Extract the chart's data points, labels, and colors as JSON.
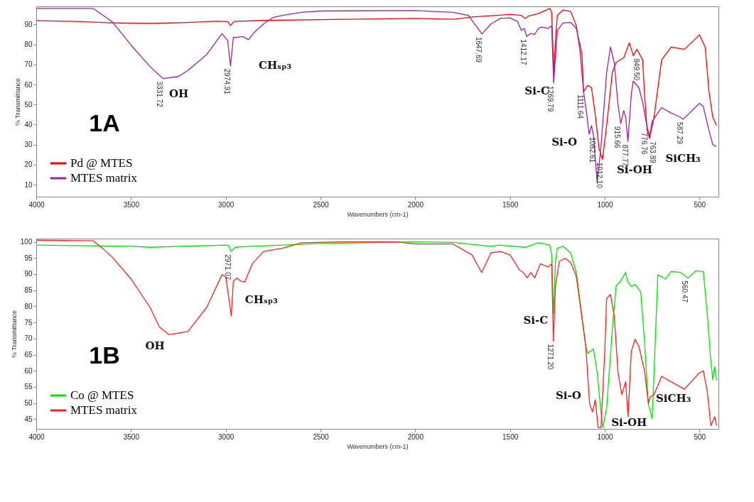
{
  "chart_data": [
    {
      "type": "line",
      "title": "1A",
      "xlabel": "Wavenumbers (cm-1)",
      "ylabel": "% Transmittance",
      "xlim": [
        4000,
        400
      ],
      "ylim": [
        4,
        99
      ],
      "xticks": [
        4000,
        3500,
        3000,
        2500,
        2000,
        1500,
        1000,
        500
      ],
      "yticks": [
        10,
        20,
        30,
        40,
        50,
        60,
        70,
        80,
        90
      ],
      "legend": "bottom left",
      "series": [
        {
          "name": "Pd @ MTES",
          "color": "#ff0000",
          "x": [
            4000,
            3800,
            3600,
            3400,
            3200,
            3050,
            2990,
            2975,
            2955,
            2800,
            2500,
            2000,
            1800,
            1700,
            1500,
            1440,
            1420,
            1400,
            1350,
            1290,
            1280,
            1269,
            1258,
            1250,
            1220,
            1180,
            1150,
            1130,
            1112,
            1090,
            1070,
            1050,
            1030,
            1012.1,
            990,
            960,
            940,
            900,
            870,
            849.5,
            830,
            800,
            790,
            776.76,
            763.89,
            740,
            700,
            650,
            580,
            520,
            500,
            470,
            450,
            430,
            410
          ],
          "values": [
            91.9,
            91.5,
            90.8,
            90.5,
            91,
            91.6,
            91.4,
            89.5,
            91.5,
            92,
            92.4,
            93,
            92.6,
            93.7,
            95,
            94.5,
            93,
            94.3,
            95.4,
            98,
            96,
            66,
            85,
            94.6,
            97.2,
            96.5,
            89.3,
            76.5,
            56.4,
            59.6,
            58.5,
            44.8,
            28,
            22.5,
            39.5,
            66,
            71,
            73.4,
            80.8,
            74.4,
            77.6,
            72.3,
            55,
            37.4,
            33,
            43.7,
            72.3,
            78.7,
            77.6,
            83,
            84.8,
            78.7,
            56.4,
            43.7,
            39.5
          ]
        },
        {
          "name": "MTES matrix",
          "color": "#a0229e",
          "x": [
            4000,
            3700,
            3600,
            3500,
            3400,
            3331.72,
            3250,
            3200,
            3100,
            3020,
            2990,
            2974.91,
            2960,
            2940,
            2910,
            2880,
            2850,
            2800,
            2750,
            2700,
            2600,
            2500,
            2000,
            1800,
            1720,
            1680,
            1647.69,
            1600,
            1550,
            1500,
            1460,
            1440,
            1425,
            1412.17,
            1390,
            1370,
            1350,
            1330,
            1300,
            1280,
            1269.79,
            1250,
            1220,
            1180,
            1150,
            1120,
            1111.64,
            1095,
            1082.61,
            1070,
            1060,
            1040,
            1020,
            990,
            970,
            950,
            930,
            915.66,
            900,
            890,
            877.77,
            860,
            850,
            820,
            800,
            780,
            764,
            750,
            700,
            650,
            600,
            587.29,
            500,
            480,
            450,
            430,
            410
          ],
          "values": [
            98,
            98,
            91.4,
            79.7,
            69,
            63,
            64,
            67,
            75,
            85.4,
            82,
            69.3,
            83.4,
            83.6,
            84,
            82.4,
            86,
            90.3,
            93.5,
            94.5,
            96,
            96.7,
            96.9,
            96,
            94.5,
            89.3,
            85.2,
            90.3,
            93,
            93.3,
            91.4,
            87,
            88,
            84,
            85.5,
            85,
            88,
            88.7,
            88,
            89.3,
            60.7,
            87,
            90.8,
            91,
            88,
            75.5,
            56.4,
            45,
            35.2,
            39.5,
            35,
            10.9,
            29,
            66,
            78.7,
            71,
            50,
            40.5,
            46.9,
            44,
            31.5,
            55,
            61.7,
            58.5,
            51,
            40.5,
            34,
            41.6,
            48.5,
            45.8,
            43.7,
            42.6,
            50.6,
            49,
            37,
            30,
            29
          ]
        }
      ],
      "annotations": [
        "OH",
        "CHₛₚ₃",
        "Si-C",
        "Si-O",
        "Si-OH",
        "SiCH₃",
        {
          "text": "3331.72",
          "x": 3331.72,
          "y": 63
        },
        {
          "text": "2974.91",
          "x": 2974.91,
          "y": 69.3
        },
        {
          "text": "1647.69",
          "x": 1647.69,
          "y": 85.2
        },
        {
          "text": "1412.17",
          "x": 1412.17,
          "y": 84
        },
        {
          "text": "1269.79",
          "x": 1269.79,
          "y": 60.7
        },
        {
          "text": "1111.64",
          "x": 1111.64,
          "y": 56.4
        },
        {
          "text": "1082.61",
          "x": 1082.61,
          "y": 35.2
        },
        {
          "text": "1012.10",
          "x": 1012.1,
          "y": 22.5
        },
        {
          "text": "915.66",
          "x": 915.66,
          "y": 40.5
        },
        {
          "text": "877.77",
          "x": 877.77,
          "y": 31.5
        },
        {
          "text": "849.50",
          "x": 849.5,
          "y": 74.4
        },
        {
          "text": "776.76",
          "x": 776.76,
          "y": 37.4
        },
        {
          "text": "763.89",
          "x": 763.89,
          "y": 33
        },
        {
          "text": "587.29",
          "x": 587.29,
          "y": 42.6
        }
      ]
    },
    {
      "type": "line",
      "title": "1B",
      "xlabel": "Wavenumbers (cm-1)",
      "ylabel": "% Transmittance",
      "xlim": [
        4000,
        400
      ],
      "ylim": [
        42,
        101
      ],
      "xticks": [
        4000,
        3500,
        3000,
        2500,
        2000,
        1500,
        1000,
        500
      ],
      "yticks": [
        45,
        50,
        55,
        60,
        65,
        70,
        75,
        80,
        85,
        90,
        95,
        100
      ],
      "legend": "bottom left",
      "series": [
        {
          "name": "Co @ MTES",
          "color": "#00e600",
          "x": [
            4000,
            3500,
            3400,
            3000,
            2985,
            2971.07,
            2950,
            2900,
            2500,
            2000,
            1800,
            1600,
            1560,
            1420,
            1350,
            1290,
            1280,
            1271.2,
            1260,
            1250,
            1220,
            1180,
            1150,
            1100,
            1090,
            1060,
            1040,
            1020,
            1010,
            990,
            960,
            940,
            920,
            890,
            880,
            860,
            840,
            810,
            790,
            770,
            750,
            740,
            720,
            700,
            680,
            650,
            600,
            560.47,
            520,
            480,
            460,
            440,
            430,
            420,
            410
          ],
          "values": [
            99,
            98.6,
            98.3,
            99,
            98.8,
            97,
            98.3,
            98.5,
            99.5,
            100,
            99.8,
            98.6,
            99,
            98.3,
            99.7,
            99,
            96,
            77.6,
            94,
            98,
            98.6,
            96.6,
            90.5,
            67.5,
            65.4,
            66.8,
            59.4,
            47.2,
            42.4,
            48.5,
            72.9,
            86.4,
            87.5,
            90.5,
            87.8,
            86.1,
            86.8,
            84.4,
            68.8,
            49.9,
            45.1,
            59.4,
            89.8,
            89.2,
            88.5,
            90.8,
            90.5,
            88.8,
            91,
            90.8,
            78.3,
            62.7,
            57.3,
            61.4,
            57
          ]
        },
        {
          "name": "MTES matrix",
          "color": "#ff2020",
          "x": [
            4000,
            3700,
            3650,
            3600,
            3500,
            3400,
            3350,
            3300,
            3200,
            3100,
            3020,
            3000,
            2980,
            2971,
            2960,
            2940,
            2920,
            2900,
            2860,
            2800,
            2700,
            2600,
            2400,
            2100,
            2000,
            1800,
            1700,
            1650,
            1600,
            1550,
            1500,
            1470,
            1450,
            1430,
            1410,
            1390,
            1370,
            1340,
            1300,
            1280,
            1271.2,
            1260,
            1240,
            1210,
            1180,
            1150,
            1120,
            1100,
            1080,
            1065,
            1050,
            1035,
            1020,
            1000,
            990,
            970,
            950,
            930,
            910,
            890,
            877,
            860,
            840,
            820,
            790,
            770,
            760,
            740,
            700,
            650,
            580,
            500,
            480,
            460,
            440,
            420,
            410
          ],
          "values": [
            100.5,
            100.3,
            98,
            95.3,
            88.5,
            79.7,
            73.6,
            71.2,
            72.2,
            79.7,
            89.8,
            89.2,
            81,
            77,
            87.8,
            88.8,
            87.8,
            87.5,
            93.2,
            97,
            98,
            99.7,
            100,
            100,
            99.3,
            99.3,
            95.9,
            90.5,
            96.6,
            97,
            95.9,
            93.2,
            91.2,
            90.5,
            88.8,
            90.5,
            88.8,
            93.2,
            92.2,
            93.2,
            69.2,
            86.4,
            93.9,
            94.9,
            93.6,
            89.2,
            76.3,
            67.5,
            49.9,
            47.2,
            51,
            42.4,
            42.4,
            66,
            82.4,
            83.7,
            77,
            59.4,
            52.6,
            56.6,
            45.8,
            66,
            69.8,
            67.5,
            60,
            49.9,
            52,
            52.6,
            58.3,
            56.6,
            54.3,
            59.4,
            60,
            54,
            43,
            45.8,
            43
          ]
        }
      ],
      "annotations": [
        "OH",
        "CHₛₚ₃",
        "Si-C",
        "Si-O",
        "Si-OH",
        "SiCH₃",
        {
          "text": "2971.07",
          "x": 2971.07,
          "y": 97
        },
        {
          "text": "1271.20",
          "x": 1271.2,
          "y": 69.2
        },
        {
          "text": "560.47",
          "x": 560.47,
          "y": 88.8
        }
      ]
    }
  ]
}
